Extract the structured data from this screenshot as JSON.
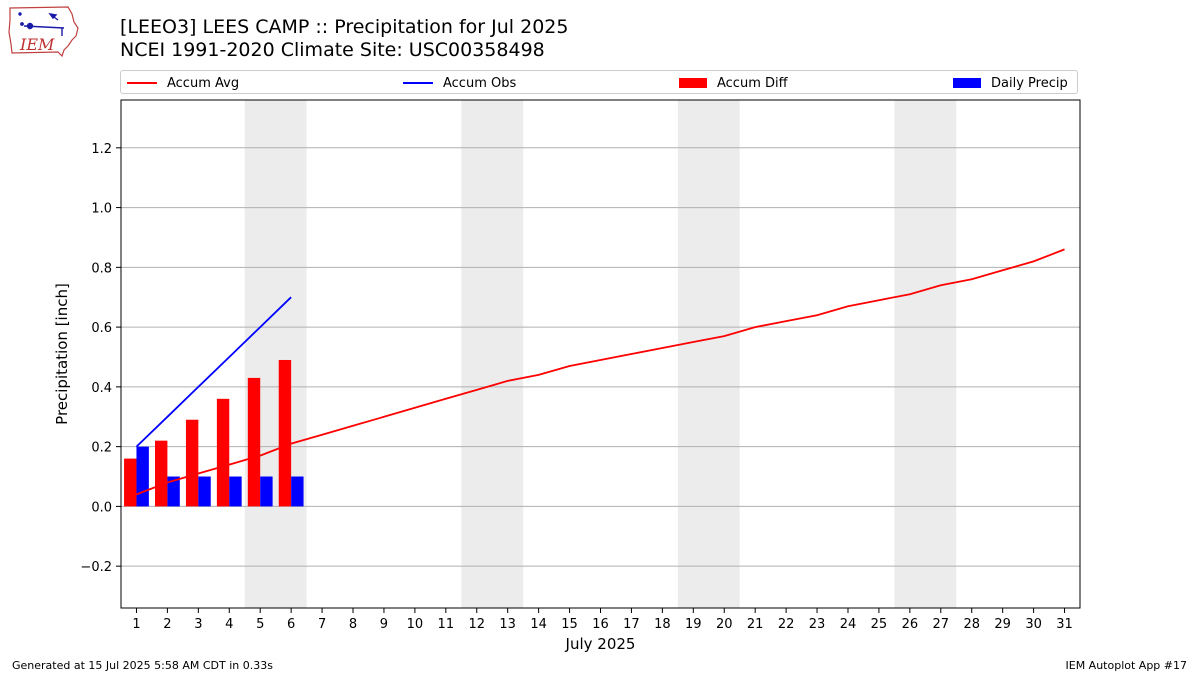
{
  "title_line1": "[LEEO3] LEES CAMP :: Precipitation for Jul 2025",
  "title_line2": "NCEI 1991-2020 Climate Site: USC00358498",
  "logo_text": "IEM",
  "footer_left": "Generated at 15 Jul 2025 5:58 AM CDT in 0.33s",
  "footer_right": "IEM Autoplot App #17",
  "colors": {
    "accum_avg": "#ff0000",
    "accum_obs": "#0000ff",
    "accum_diff": "#ff0000",
    "daily_precip": "#0000ff",
    "weekend_shade": "#ececec",
    "grid": "#b0b0b0"
  },
  "legend": [
    {
      "label": "Accum Avg",
      "kind": "line",
      "color": "#ff0000"
    },
    {
      "label": "Accum Obs",
      "kind": "line",
      "color": "#0000ff"
    },
    {
      "label": "Accum Diff",
      "kind": "box",
      "color": "#ff0000"
    },
    {
      "label": "Daily Precip",
      "kind": "box",
      "color": "#0000ff"
    }
  ],
  "chart_data": {
    "type": "bar",
    "xlabel": "July 2025",
    "ylabel": "Precipitation [inch]",
    "xlim": [
      0.5,
      31.5
    ],
    "ylim": [
      -0.34,
      1.36
    ],
    "grid": "horizontal",
    "legend_placement": "top",
    "x": [
      1,
      2,
      3,
      4,
      5,
      6,
      7,
      8,
      9,
      10,
      11,
      12,
      13,
      14,
      15,
      16,
      17,
      18,
      19,
      20,
      21,
      22,
      23,
      24,
      25,
      26,
      27,
      28,
      29,
      30,
      31
    ],
    "yticks": [
      -0.2,
      0.0,
      0.2,
      0.4,
      0.6,
      0.8,
      1.0,
      1.2
    ],
    "ytick_labels": [
      "−0.2",
      "0.0",
      "0.2",
      "0.4",
      "0.6",
      "0.8",
      "1.0",
      "1.2"
    ],
    "weekends": [
      [
        5,
        6
      ],
      [
        12,
        13
      ],
      [
        19,
        20
      ],
      [
        26,
        27
      ]
    ],
    "series": [
      {
        "name": "Accum Avg",
        "kind": "line",
        "color": "#ff0000",
        "x": [
          1,
          2,
          3,
          4,
          5,
          6,
          7,
          8,
          9,
          10,
          11,
          12,
          13,
          14,
          15,
          16,
          17,
          18,
          19,
          20,
          21,
          22,
          23,
          24,
          25,
          26,
          27,
          28,
          29,
          30,
          31
        ],
        "values": [
          0.04,
          0.08,
          0.11,
          0.14,
          0.17,
          0.21,
          0.24,
          0.27,
          0.3,
          0.33,
          0.36,
          0.39,
          0.42,
          0.44,
          0.47,
          0.49,
          0.51,
          0.53,
          0.55,
          0.57,
          0.6,
          0.62,
          0.64,
          0.67,
          0.69,
          0.71,
          0.74,
          0.76,
          0.79,
          0.82,
          0.86
        ]
      },
      {
        "name": "Accum Obs",
        "kind": "line",
        "color": "#0000ff",
        "x": [
          1,
          2,
          3,
          4,
          5,
          6
        ],
        "values": [
          0.2,
          0.3,
          0.4,
          0.5,
          0.6,
          0.7
        ]
      },
      {
        "name": "Accum Diff",
        "kind": "bar",
        "color": "#ff0000",
        "x": [
          1,
          2,
          3,
          4,
          5,
          6
        ],
        "values": [
          0.16,
          0.22,
          0.29,
          0.36,
          0.43,
          0.49
        ]
      },
      {
        "name": "Daily Precip",
        "kind": "bar",
        "color": "#0000ff",
        "x": [
          1,
          2,
          3,
          4,
          5,
          6
        ],
        "values": [
          0.2,
          0.1,
          0.1,
          0.1,
          0.1,
          0.1
        ]
      }
    ]
  }
}
